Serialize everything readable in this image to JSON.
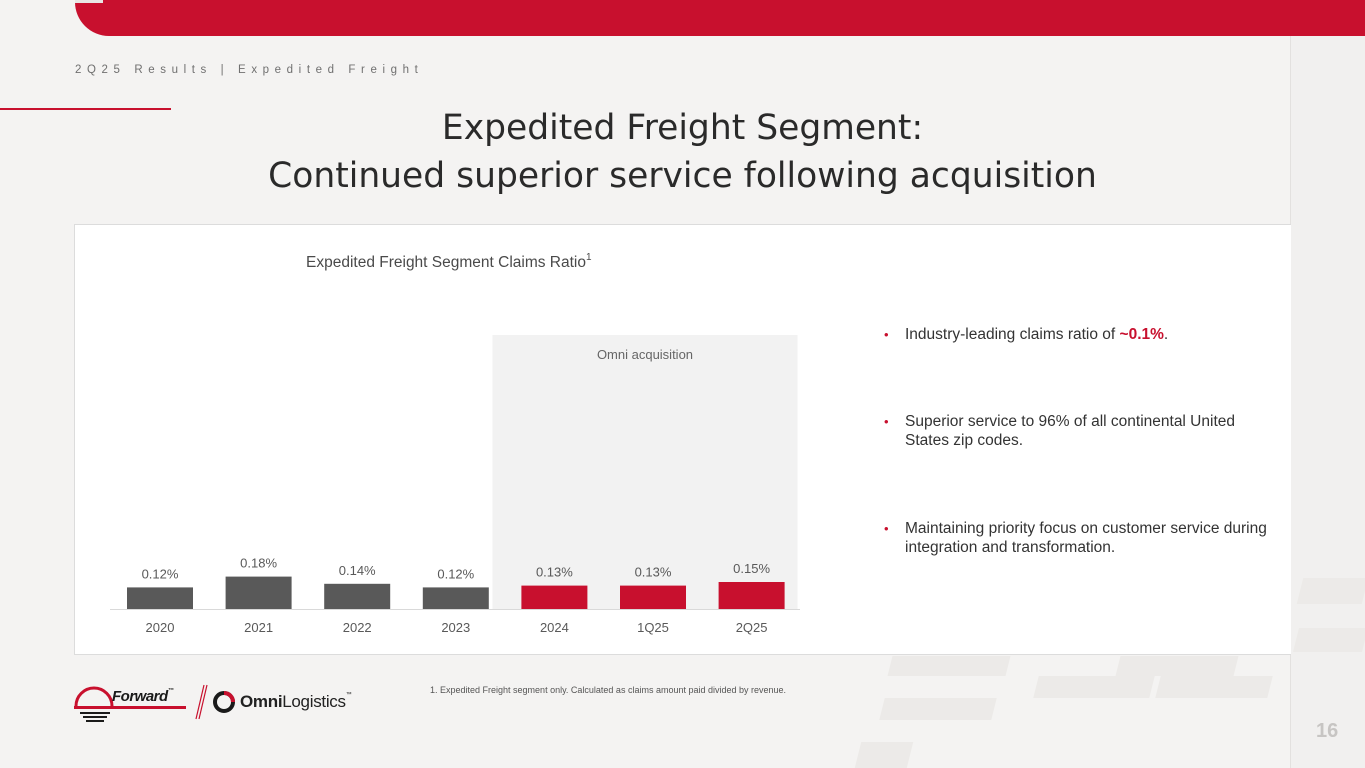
{
  "header": {
    "breadcrumb": "2Q25 Results | Expedited Freight",
    "title_line1": "Expedited Freight Segment:",
    "title_line2": "Continued superior service following acquisition"
  },
  "chart_data": {
    "type": "bar",
    "title": "Expedited Freight Segment Claims Ratio",
    "title_superscript": "1",
    "categories": [
      "2020",
      "2021",
      "2022",
      "2023",
      "2024",
      "1Q25",
      "2Q25"
    ],
    "values": [
      0.12,
      0.18,
      0.14,
      0.12,
      0.13,
      0.13,
      0.15
    ],
    "data_labels": [
      "0.12%",
      "0.18%",
      "0.14%",
      "0.12%",
      "0.13%",
      "0.13%",
      "0.15%"
    ],
    "unit": "%",
    "bar_colors": [
      "#595959",
      "#595959",
      "#595959",
      "#595959",
      "#c8102e",
      "#c8102e",
      "#c8102e"
    ],
    "annotation": {
      "label": "Omni acquisition",
      "start_category": "2024",
      "end_category": "2Q25",
      "shade_color": "#f2f2f2"
    },
    "xlabel": "",
    "ylabel": "",
    "ylim": [
      0,
      0.18
    ],
    "grid": false,
    "legend": "none"
  },
  "bullets": [
    {
      "text_before": "Industry-leading claims ratio of ",
      "highlight": "~0.1%",
      "text_after": "."
    },
    {
      "text": "Superior service to 96% of all continental United States zip codes."
    },
    {
      "text": "Maintaining priority focus on customer service during integration and transformation."
    }
  ],
  "footnote": "1.  Expedited Freight segment only. Calculated as claims amount paid divided by revenue.",
  "logos": {
    "forward": "Forward",
    "forward_tm": "™",
    "omni_bold": "Omni",
    "omni_light": "Logistics",
    "omni_tm": "™"
  },
  "page_number": "16",
  "colors": {
    "brand_red": "#c8102e",
    "bar_gray": "#595959",
    "background": "#f4f3f2"
  }
}
